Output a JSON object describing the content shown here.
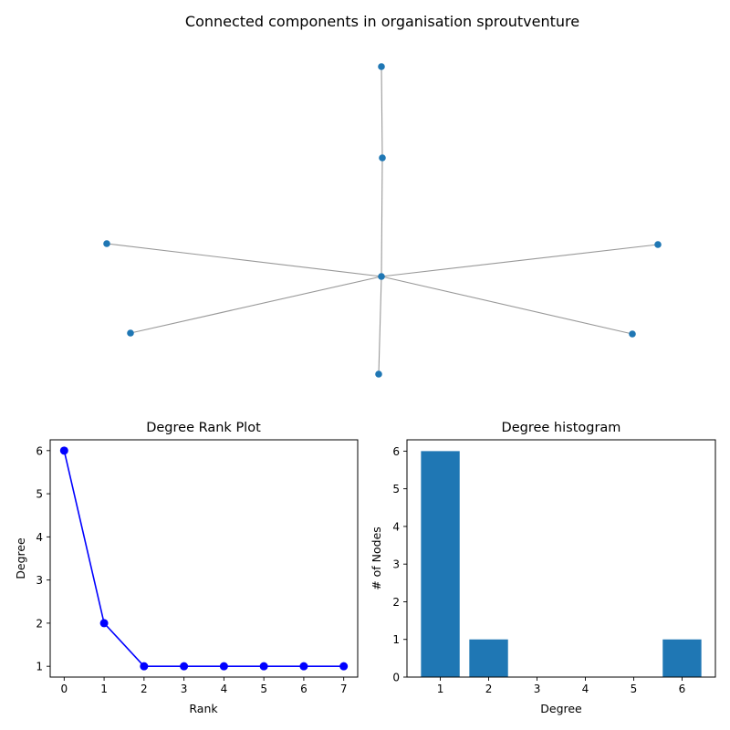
{
  "figure": {
    "title": "Connected components in organisation sproutventure"
  },
  "chart_data": [
    {
      "type": "network",
      "nodes": [
        {
          "id": "center"
        },
        {
          "id": "top"
        },
        {
          "id": "upper"
        },
        {
          "id": "left"
        },
        {
          "id": "lower-left"
        },
        {
          "id": "bottom"
        },
        {
          "id": "lower-right"
        },
        {
          "id": "right"
        }
      ],
      "edges": [
        [
          "upper",
          "top"
        ],
        [
          "center",
          "upper"
        ],
        [
          "center",
          "left"
        ],
        [
          "center",
          "lower-left"
        ],
        [
          "center",
          "bottom"
        ],
        [
          "center",
          "lower-right"
        ],
        [
          "center",
          "right"
        ]
      ],
      "node_color": "#1f77b4",
      "edge_color": "#999999"
    },
    {
      "type": "line",
      "title": "Degree Rank Plot",
      "xlabel": "Rank",
      "ylabel": "Degree",
      "x": [
        0,
        1,
        2,
        3,
        4,
        5,
        6,
        7
      ],
      "y": [
        6,
        2,
        1,
        1,
        1,
        1,
        1,
        1
      ],
      "xticks": [
        0,
        1,
        2,
        3,
        4,
        5,
        6,
        7
      ],
      "yticks": [
        1,
        2,
        3,
        4,
        5,
        6
      ],
      "xlim": [
        -0.35,
        7.35
      ],
      "ylim": [
        0.75,
        6.25
      ],
      "color": "#0000ff",
      "marker": "circle",
      "grid": false
    },
    {
      "type": "bar",
      "title": "Degree histogram",
      "xlabel": "Degree",
      "ylabel": "# of Nodes",
      "categories": [
        1,
        2,
        3,
        4,
        5,
        6
      ],
      "values": [
        6,
        1,
        0,
        0,
        0,
        1
      ],
      "xticks": [
        1,
        2,
        3,
        4,
        5,
        6
      ],
      "yticks": [
        0,
        1,
        2,
        3,
        4,
        5,
        6
      ],
      "xlim": [
        0.31,
        6.69
      ],
      "ylim": [
        0,
        6.3
      ],
      "color": "#1f77b4",
      "grid": false
    }
  ]
}
